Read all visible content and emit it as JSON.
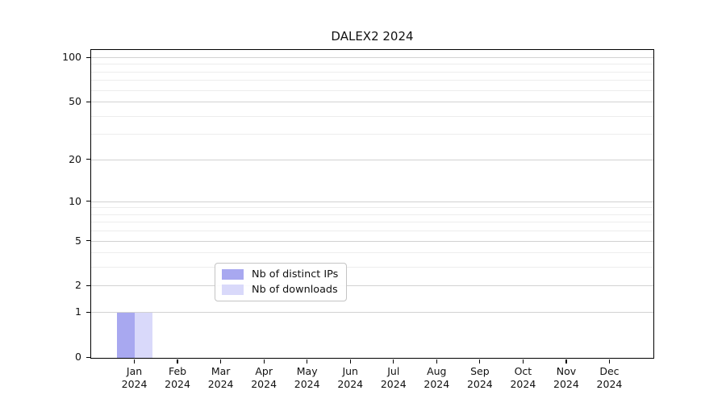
{
  "chart_data": {
    "type": "bar",
    "title": "DALEX2 2024",
    "categories": [
      "Jan",
      "Feb",
      "Mar",
      "Apr",
      "May",
      "Jun",
      "Jul",
      "Aug",
      "Sep",
      "Oct",
      "Nov",
      "Dec"
    ],
    "x_year_label": "2024",
    "series": [
      {
        "name": "Nb of distinct IPs",
        "color": "#a8a8f0",
        "values": [
          1,
          0,
          0,
          0,
          0,
          0,
          0,
          0,
          0,
          0,
          0,
          0
        ]
      },
      {
        "name": "Nb of downloads",
        "color": "#d9d9fa",
        "values": [
          1,
          0,
          0,
          0,
          0,
          0,
          0,
          0,
          0,
          0,
          0,
          0
        ]
      }
    ],
    "yscale": "log1p",
    "ylim": [
      0,
      112
    ],
    "y_ticks": [
      0,
      1,
      2,
      5,
      10,
      20,
      50,
      100
    ],
    "y_minor_gridlines": [
      3,
      4,
      6,
      7,
      8,
      9,
      30,
      40,
      60,
      70,
      80,
      90
    ],
    "grid": "horizontal",
    "legend_position": "lower center inside axes",
    "xlabel": "",
    "ylabel": ""
  }
}
